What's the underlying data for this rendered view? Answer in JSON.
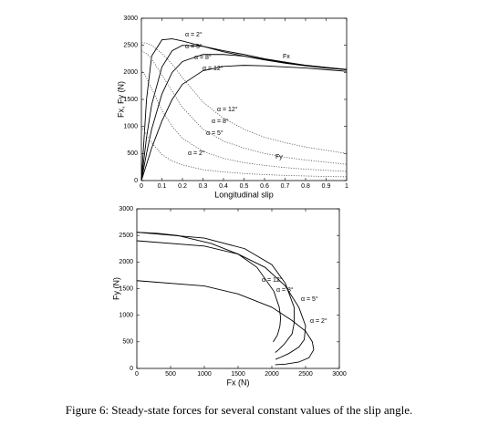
{
  "chart_data": [
    {
      "type": "line",
      "xlabel": "Longitudinal slip",
      "ylabel": "Fx, Fy (N)",
      "x": [
        0,
        0.025,
        0.05,
        0.1,
        0.15,
        0.2,
        0.3,
        0.4,
        0.5,
        0.6,
        0.7,
        0.8,
        0.9,
        1
      ],
      "xlim": [
        0,
        1
      ],
      "xticks": [
        0,
        0.1,
        0.2,
        0.3,
        0.4,
        0.5,
        0.6,
        0.7,
        0.8,
        0.9,
        1
      ],
      "ylim": [
        0,
        3000
      ],
      "yticks": [
        0,
        500,
        1000,
        1500,
        2000,
        2500,
        3000
      ],
      "series": [
        {
          "color": "#000000",
          "style": "solid",
          "values": [
            0,
            1500,
            2300,
            2600,
            2620,
            2580,
            2480,
            2380,
            2300,
            2230,
            2170,
            2120,
            2080,
            2050
          ]
        },
        {
          "color": "#000000",
          "style": "solid",
          "values": [
            0,
            800,
            1400,
            2100,
            2400,
            2500,
            2480,
            2400,
            2330,
            2250,
            2190,
            2130,
            2090,
            2055
          ]
        },
        {
          "color": "#000000",
          "style": "solid",
          "values": [
            0,
            500,
            950,
            1600,
            2000,
            2200,
            2330,
            2330,
            2300,
            2240,
            2180,
            2130,
            2090,
            2050
          ]
        },
        {
          "color": "#000000",
          "style": "solid",
          "values": [
            0,
            300,
            600,
            1100,
            1500,
            1780,
            2030,
            2110,
            2130,
            2120,
            2100,
            2080,
            2050,
            2020
          ]
        },
        {
          "color": "#555555",
          "style": "dotted",
          "values": [
            2550,
            2540,
            2500,
            2350,
            2150,
            1900,
            1450,
            1150,
            950,
            800,
            700,
            620,
            560,
            500
          ]
        },
        {
          "color": "#555555",
          "style": "dotted",
          "values": [
            2400,
            2350,
            2250,
            1950,
            1650,
            1350,
            950,
            730,
            600,
            500,
            430,
            380,
            340,
            300
          ]
        },
        {
          "color": "#555555",
          "style": "dotted",
          "values": [
            2050,
            1900,
            1700,
            1300,
            1000,
            780,
            540,
            410,
            330,
            280,
            240,
            210,
            190,
            170
          ]
        },
        {
          "color": "#555555",
          "style": "dotted",
          "values": [
            1000,
            850,
            700,
            480,
            360,
            290,
            200,
            160,
            130,
            110,
            95,
            85,
            75,
            70
          ]
        }
      ],
      "annotations": [
        "α = 2°",
        "α = 5°",
        "α = 8°",
        "α = 12°",
        "Fx",
        "α = 12°",
        "α = 8°",
        "α = 5°",
        "α = 2°",
        "Fy"
      ]
    },
    {
      "type": "line",
      "xlabel": "Fx (N)",
      "ylabel": "Fy (N)",
      "xlim": [
        0,
        3000
      ],
      "xticks": [
        0,
        500,
        1000,
        1500,
        2000,
        2500,
        3000
      ],
      "ylim": [
        0,
        3000
      ],
      "yticks": [
        0,
        500,
        1000,
        1500,
        2000,
        2500,
        3000
      ],
      "series": [
        {
          "color": "#000000",
          "style": "solid",
          "x": [
            0,
            300,
            600,
            1100,
            1500,
            1780,
            2030,
            2110,
            2130,
            2120,
            2100,
            2080,
            2050,
            2020
          ],
          "values": [
            2560,
            2540,
            2500,
            2350,
            2150,
            1900,
            1450,
            1150,
            950,
            800,
            700,
            620,
            560,
            500
          ]
        },
        {
          "color": "#000000",
          "style": "solid",
          "x": [
            0,
            1000,
            1600,
            2000,
            2200,
            2330,
            2330,
            2300,
            2180,
            2090,
            2050
          ],
          "values": [
            2560,
            2450,
            2250,
            1950,
            1600,
            1150,
            850,
            650,
            450,
            340,
            300
          ]
        },
        {
          "color": "#000000",
          "style": "solid",
          "x": [
            0,
            1000,
            1500,
            1900,
            2200,
            2400,
            2500,
            2480,
            2400,
            2250,
            2130,
            2055
          ],
          "values": [
            2400,
            2300,
            2150,
            1900,
            1550,
            1150,
            800,
            540,
            400,
            280,
            210,
            170
          ]
        },
        {
          "color": "#000000",
          "style": "solid",
          "x": [
            0,
            1000,
            1500,
            2000,
            2300,
            2500,
            2600,
            2620,
            2550,
            2400,
            2200,
            2050
          ],
          "values": [
            1650,
            1550,
            1400,
            1150,
            900,
            700,
            500,
            350,
            200,
            120,
            80,
            70
          ]
        }
      ],
      "annotations": [
        "α = 12°",
        "α = 8°",
        "α = 5°",
        "α = 2°"
      ]
    }
  ],
  "caption": "Figure 6: Steady-state forces for several constant values of the slip angle."
}
